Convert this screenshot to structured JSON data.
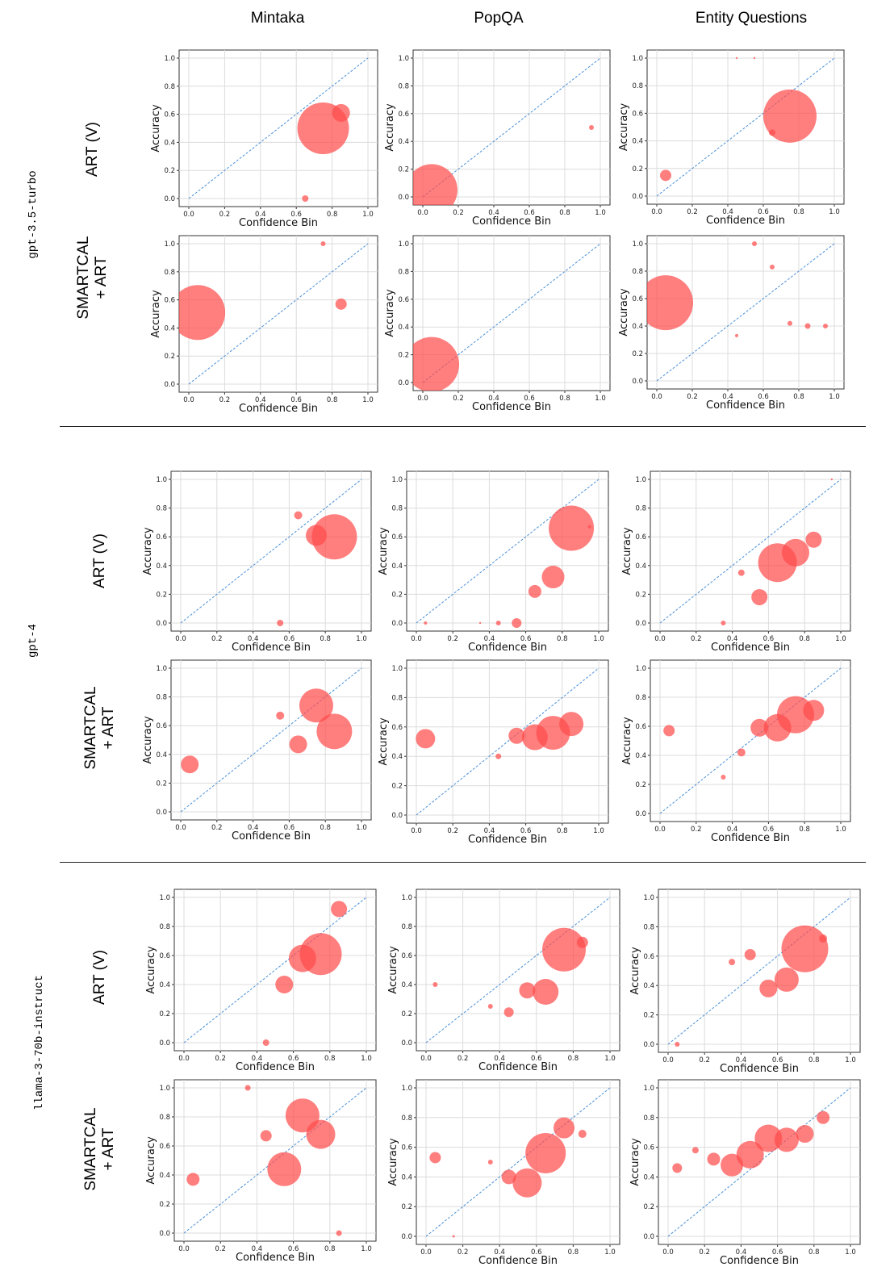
{
  "columns": [
    "Mintaka",
    "PopQA",
    "Entity Questions"
  ],
  "models": [
    "gpt-3.5-turbo",
    "gpt-4",
    "llama-3-70b-instruct"
  ],
  "methods": {
    "art_v": "ART (V)",
    "smartcal_line1": "SMARTCAL",
    "smartcal_line2": "+ ART"
  },
  "chart_data": [
    {
      "type": "scatter",
      "model": "gpt-3.5-turbo",
      "method": "ART (V)",
      "dataset": "Mintaka",
      "xlabel": "Confidence Bin",
      "ylabel": "Accuracy",
      "xlim": [
        0,
        1
      ],
      "ylim": [
        0,
        1
      ],
      "ticks": [
        "0.0",
        "0.2",
        "0.4",
        "0.6",
        "0.8",
        "1.0"
      ],
      "points": [
        {
          "x": 0.75,
          "y": 0.5,
          "size": 32
        },
        {
          "x": 0.85,
          "y": 0.61,
          "size": 11
        },
        {
          "x": 0.65,
          "y": 0.0,
          "size": 4
        }
      ]
    },
    {
      "type": "scatter",
      "model": "gpt-3.5-turbo",
      "method": "ART (V)",
      "dataset": "PopQA",
      "xlabel": "Confidence Bin",
      "ylabel": "Accuracy",
      "xlim": [
        0,
        1
      ],
      "ylim": [
        0,
        1
      ],
      "ticks": [
        "0.0",
        "0.2",
        "0.4",
        "0.6",
        "0.8",
        "1.0"
      ],
      "points": [
        {
          "x": 0.05,
          "y": 0.05,
          "size": 32
        },
        {
          "x": 0.95,
          "y": 0.5,
          "size": 3
        }
      ]
    },
    {
      "type": "scatter",
      "model": "gpt-3.5-turbo",
      "method": "ART (V)",
      "dataset": "Entity Questions",
      "xlabel": "Confidence Bin",
      "ylabel": "Accuracy",
      "xlim": [
        0,
        1
      ],
      "ylim": [
        0,
        1
      ],
      "ticks": [
        "0.0",
        "0.2",
        "0.4",
        "0.6",
        "0.8",
        "1.0"
      ],
      "points": [
        {
          "x": 0.75,
          "y": 0.58,
          "size": 33
        },
        {
          "x": 0.05,
          "y": 0.15,
          "size": 7
        },
        {
          "x": 0.65,
          "y": 0.46,
          "size": 4
        },
        {
          "x": 0.45,
          "y": 1.0,
          "size": 1.2
        },
        {
          "x": 0.55,
          "y": 1.0,
          "size": 1.2
        }
      ]
    },
    {
      "type": "scatter",
      "model": "gpt-3.5-turbo",
      "method": "SMARTCAL + ART",
      "dataset": "Mintaka",
      "xlabel": "Confidence Bin",
      "ylabel": "Accuracy",
      "xlim": [
        0,
        1
      ],
      "ylim": [
        0,
        1
      ],
      "ticks": [
        "0.0",
        "0.2",
        "0.4",
        "0.6",
        "0.8",
        "1.0"
      ],
      "points": [
        {
          "x": 0.05,
          "y": 0.51,
          "size": 34
        },
        {
          "x": 0.85,
          "y": 0.57,
          "size": 7
        },
        {
          "x": 0.75,
          "y": 1.0,
          "size": 3
        }
      ]
    },
    {
      "type": "scatter",
      "model": "gpt-3.5-turbo",
      "method": "SMARTCAL + ART",
      "dataset": "PopQA",
      "xlabel": "Confidence Bin",
      "ylabel": "Accuracy",
      "xlim": [
        0,
        1
      ],
      "ylim": [
        0,
        1
      ],
      "ticks": [
        "0.0",
        "0.2",
        "0.4",
        "0.6",
        "0.8",
        "1.0"
      ],
      "points": [
        {
          "x": 0.05,
          "y": 0.13,
          "size": 34
        }
      ]
    },
    {
      "type": "scatter",
      "model": "gpt-3.5-turbo",
      "method": "SMARTCAL + ART",
      "dataset": "Entity Questions",
      "xlabel": "Confidence Bin",
      "ylabel": "Accuracy",
      "xlim": [
        0,
        1
      ],
      "ylim": [
        0,
        1
      ],
      "ticks": [
        "0.0",
        "0.2",
        "0.4",
        "0.6",
        "0.8",
        "1.0"
      ],
      "points": [
        {
          "x": 0.05,
          "y": 0.57,
          "size": 34
        },
        {
          "x": 0.55,
          "y": 1.0,
          "size": 3
        },
        {
          "x": 0.65,
          "y": 0.83,
          "size": 3
        },
        {
          "x": 0.75,
          "y": 0.42,
          "size": 3
        },
        {
          "x": 0.85,
          "y": 0.4,
          "size": 3.5
        },
        {
          "x": 0.95,
          "y": 0.4,
          "size": 3
        },
        {
          "x": 0.45,
          "y": 0.33,
          "size": 2
        }
      ]
    },
    {
      "type": "scatter",
      "model": "gpt-4",
      "method": "ART (V)",
      "dataset": "Mintaka",
      "xlabel": "Confidence Bin",
      "ylabel": "Accuracy",
      "xlim": [
        0,
        1
      ],
      "ylim": [
        0,
        1
      ],
      "ticks": [
        "0.0",
        "0.2",
        "0.4",
        "0.6",
        "0.8",
        "1.0"
      ],
      "points": [
        {
          "x": 0.85,
          "y": 0.6,
          "size": 28
        },
        {
          "x": 0.75,
          "y": 0.61,
          "size": 13
        },
        {
          "x": 0.65,
          "y": 0.75,
          "size": 5
        },
        {
          "x": 0.55,
          "y": 0.0,
          "size": 4
        }
      ]
    },
    {
      "type": "scatter",
      "model": "gpt-4",
      "method": "ART (V)",
      "dataset": "PopQA",
      "xlabel": "Confidence Bin",
      "ylabel": "Accuracy",
      "xlim": [
        0,
        1
      ],
      "ylim": [
        0,
        1
      ],
      "ticks": [
        "0.0",
        "0.2",
        "0.4",
        "0.6",
        "0.8",
        "1.0"
      ],
      "points": [
        {
          "x": 0.85,
          "y": 0.66,
          "size": 28
        },
        {
          "x": 0.75,
          "y": 0.32,
          "size": 14
        },
        {
          "x": 0.65,
          "y": 0.22,
          "size": 8
        },
        {
          "x": 0.55,
          "y": 0.0,
          "size": 6
        },
        {
          "x": 0.45,
          "y": 0.0,
          "size": 3
        },
        {
          "x": 0.35,
          "y": 0.0,
          "size": 1.2
        },
        {
          "x": 0.05,
          "y": 0.0,
          "size": 2
        },
        {
          "x": 0.95,
          "y": 0.67,
          "size": 2
        }
      ]
    },
    {
      "type": "scatter",
      "model": "gpt-4",
      "method": "ART (V)",
      "dataset": "Entity Questions",
      "xlabel": "Confidence Bin",
      "ylabel": "Accuracy",
      "xlim": [
        0,
        1
      ],
      "ylim": [
        0,
        1
      ],
      "ticks": [
        "0.0",
        "0.2",
        "0.4",
        "0.6",
        "0.8",
        "1.0"
      ],
      "points": [
        {
          "x": 0.65,
          "y": 0.42,
          "size": 24
        },
        {
          "x": 0.75,
          "y": 0.49,
          "size": 17
        },
        {
          "x": 0.85,
          "y": 0.58,
          "size": 10
        },
        {
          "x": 0.55,
          "y": 0.18,
          "size": 10
        },
        {
          "x": 0.45,
          "y": 0.35,
          "size": 4
        },
        {
          "x": 0.35,
          "y": 0.0,
          "size": 3
        },
        {
          "x": 0.95,
          "y": 1.0,
          "size": 1.2
        }
      ]
    },
    {
      "type": "scatter",
      "model": "gpt-4",
      "method": "SMARTCAL + ART",
      "dataset": "Mintaka",
      "xlabel": "Confidence Bin",
      "ylabel": "Accuracy",
      "xlim": [
        0,
        1
      ],
      "ylim": [
        0,
        1
      ],
      "ticks": [
        "0.0",
        "0.2",
        "0.4",
        "0.6",
        "0.8",
        "1.0"
      ],
      "points": [
        {
          "x": 0.75,
          "y": 0.74,
          "size": 21
        },
        {
          "x": 0.85,
          "y": 0.56,
          "size": 22
        },
        {
          "x": 0.65,
          "y": 0.47,
          "size": 11
        },
        {
          "x": 0.55,
          "y": 0.67,
          "size": 5
        },
        {
          "x": 0.05,
          "y": 0.33,
          "size": 11
        }
      ]
    },
    {
      "type": "scatter",
      "model": "gpt-4",
      "method": "SMARTCAL + ART",
      "dataset": "PopQA",
      "xlabel": "Confidence Bin",
      "ylabel": "Accuracy",
      "xlim": [
        0,
        1
      ],
      "ylim": [
        0,
        1
      ],
      "ticks": [
        "0.0",
        "0.2",
        "0.4",
        "0.6",
        "0.8",
        "1.0"
      ],
      "points": [
        {
          "x": 0.75,
          "y": 0.56,
          "size": 21
        },
        {
          "x": 0.65,
          "y": 0.53,
          "size": 16
        },
        {
          "x": 0.85,
          "y": 0.62,
          "size": 15
        },
        {
          "x": 0.55,
          "y": 0.54,
          "size": 10
        },
        {
          "x": 0.05,
          "y": 0.52,
          "size": 12
        },
        {
          "x": 0.45,
          "y": 0.4,
          "size": 3.5
        }
      ]
    },
    {
      "type": "scatter",
      "model": "gpt-4",
      "method": "SMARTCAL + ART",
      "dataset": "Entity Questions",
      "xlabel": "Confidence Bin",
      "ylabel": "Accuracy",
      "xlim": [
        0,
        1
      ],
      "ylim": [
        0,
        1
      ],
      "ticks": [
        "0.0",
        "0.2",
        "0.4",
        "0.6",
        "0.8",
        "1.0"
      ],
      "points": [
        {
          "x": 0.75,
          "y": 0.68,
          "size": 23
        },
        {
          "x": 0.65,
          "y": 0.59,
          "size": 17
        },
        {
          "x": 0.85,
          "y": 0.71,
          "size": 13
        },
        {
          "x": 0.55,
          "y": 0.59,
          "size": 11
        },
        {
          "x": 0.45,
          "y": 0.42,
          "size": 5
        },
        {
          "x": 0.05,
          "y": 0.57,
          "size": 7
        },
        {
          "x": 0.35,
          "y": 0.25,
          "size": 3
        }
      ]
    },
    {
      "type": "scatter",
      "model": "llama-3-70b-instruct",
      "method": "ART (V)",
      "dataset": "Mintaka",
      "xlabel": "Confidence Bin",
      "ylabel": "Accuracy",
      "xlim": [
        0,
        1
      ],
      "ylim": [
        0,
        1
      ],
      "ticks": [
        "0.0",
        "0.2",
        "0.4",
        "0.6",
        "0.8",
        "1.0"
      ],
      "points": [
        {
          "x": 0.75,
          "y": 0.61,
          "size": 26
        },
        {
          "x": 0.65,
          "y": 0.58,
          "size": 17
        },
        {
          "x": 0.85,
          "y": 0.92,
          "size": 10
        },
        {
          "x": 0.55,
          "y": 0.4,
          "size": 11
        },
        {
          "x": 0.45,
          "y": 0.0,
          "size": 4
        }
      ]
    },
    {
      "type": "scatter",
      "model": "llama-3-70b-instruct",
      "method": "ART (V)",
      "dataset": "PopQA",
      "xlabel": "Confidence Bin",
      "ylabel": "Accuracy",
      "xlim": [
        0,
        1
      ],
      "ylim": [
        0,
        1
      ],
      "ticks": [
        "0.0",
        "0.2",
        "0.4",
        "0.6",
        "0.8",
        "1.0"
      ],
      "points": [
        {
          "x": 0.75,
          "y": 0.64,
          "size": 27
        },
        {
          "x": 0.85,
          "y": 0.69,
          "size": 7
        },
        {
          "x": 0.65,
          "y": 0.35,
          "size": 16
        },
        {
          "x": 0.55,
          "y": 0.36,
          "size": 10
        },
        {
          "x": 0.45,
          "y": 0.21,
          "size": 6
        },
        {
          "x": 0.35,
          "y": 0.25,
          "size": 3
        },
        {
          "x": 0.05,
          "y": 0.4,
          "size": 3
        }
      ]
    },
    {
      "type": "scatter",
      "model": "llama-3-70b-instruct",
      "method": "ART (V)",
      "dataset": "Entity Questions",
      "xlabel": "Confidence Bin",
      "ylabel": "Accuracy",
      "xlim": [
        0,
        1
      ],
      "ylim": [
        0,
        1
      ],
      "ticks": [
        "0.0",
        "0.2",
        "0.4",
        "0.6",
        "0.8",
        "1.0"
      ],
      "points": [
        {
          "x": 0.75,
          "y": 0.65,
          "size": 29
        },
        {
          "x": 0.65,
          "y": 0.44,
          "size": 15
        },
        {
          "x": 0.55,
          "y": 0.38,
          "size": 11
        },
        {
          "x": 0.45,
          "y": 0.61,
          "size": 7
        },
        {
          "x": 0.35,
          "y": 0.56,
          "size": 4
        },
        {
          "x": 0.85,
          "y": 0.72,
          "size": 5
        },
        {
          "x": 0.05,
          "y": 0.0,
          "size": 3
        }
      ]
    },
    {
      "type": "scatter",
      "model": "llama-3-70b-instruct",
      "method": "SMARTCAL + ART",
      "dataset": "Mintaka",
      "xlabel": "Confidence Bin",
      "ylabel": "Accuracy",
      "xlim": [
        0,
        1
      ],
      "ylim": [
        0,
        1
      ],
      "ticks": [
        "0.0",
        "0.2",
        "0.4",
        "0.6",
        "0.8",
        "1.0"
      ],
      "points": [
        {
          "x": 0.65,
          "y": 0.81,
          "size": 21
        },
        {
          "x": 0.75,
          "y": 0.68,
          "size": 18
        },
        {
          "x": 0.55,
          "y": 0.44,
          "size": 21
        },
        {
          "x": 0.45,
          "y": 0.67,
          "size": 7
        },
        {
          "x": 0.35,
          "y": 1.0,
          "size": 3.5
        },
        {
          "x": 0.05,
          "y": 0.37,
          "size": 8
        },
        {
          "x": 0.85,
          "y": 0.0,
          "size": 3.5
        }
      ]
    },
    {
      "type": "scatter",
      "model": "llama-3-70b-instruct",
      "method": "SMARTCAL + ART",
      "dataset": "PopQA",
      "xlabel": "Confidence Bin",
      "ylabel": "Accuracy",
      "xlim": [
        0,
        1
      ],
      "ylim": [
        0,
        1
      ],
      "ticks": [
        "0.0",
        "0.2",
        "0.4",
        "0.6",
        "0.8",
        "1.0"
      ],
      "points": [
        {
          "x": 0.65,
          "y": 0.56,
          "size": 25
        },
        {
          "x": 0.55,
          "y": 0.36,
          "size": 18
        },
        {
          "x": 0.75,
          "y": 0.73,
          "size": 13
        },
        {
          "x": 0.45,
          "y": 0.4,
          "size": 9
        },
        {
          "x": 0.05,
          "y": 0.53,
          "size": 7
        },
        {
          "x": 0.35,
          "y": 0.5,
          "size": 3
        },
        {
          "x": 0.85,
          "y": 0.69,
          "size": 5
        },
        {
          "x": 0.15,
          "y": 0.0,
          "size": 1.5
        }
      ]
    },
    {
      "type": "scatter",
      "model": "llama-3-70b-instruct",
      "method": "SMARTCAL + ART",
      "dataset": "Entity Questions",
      "xlabel": "Confidence Bin",
      "ylabel": "Accuracy",
      "xlim": [
        0,
        1
      ],
      "ylim": [
        0,
        1
      ],
      "ticks": [
        "0.0",
        "0.2",
        "0.4",
        "0.6",
        "0.8",
        "1.0"
      ],
      "points": [
        {
          "x": 0.55,
          "y": 0.66,
          "size": 17
        },
        {
          "x": 0.65,
          "y": 0.65,
          "size": 15
        },
        {
          "x": 0.45,
          "y": 0.55,
          "size": 17
        },
        {
          "x": 0.35,
          "y": 0.48,
          "size": 14
        },
        {
          "x": 0.75,
          "y": 0.69,
          "size": 11
        },
        {
          "x": 0.85,
          "y": 0.8,
          "size": 8
        },
        {
          "x": 0.25,
          "y": 0.52,
          "size": 8
        },
        {
          "x": 0.15,
          "y": 0.58,
          "size": 4
        },
        {
          "x": 0.05,
          "y": 0.46,
          "size": 6
        }
      ]
    }
  ]
}
